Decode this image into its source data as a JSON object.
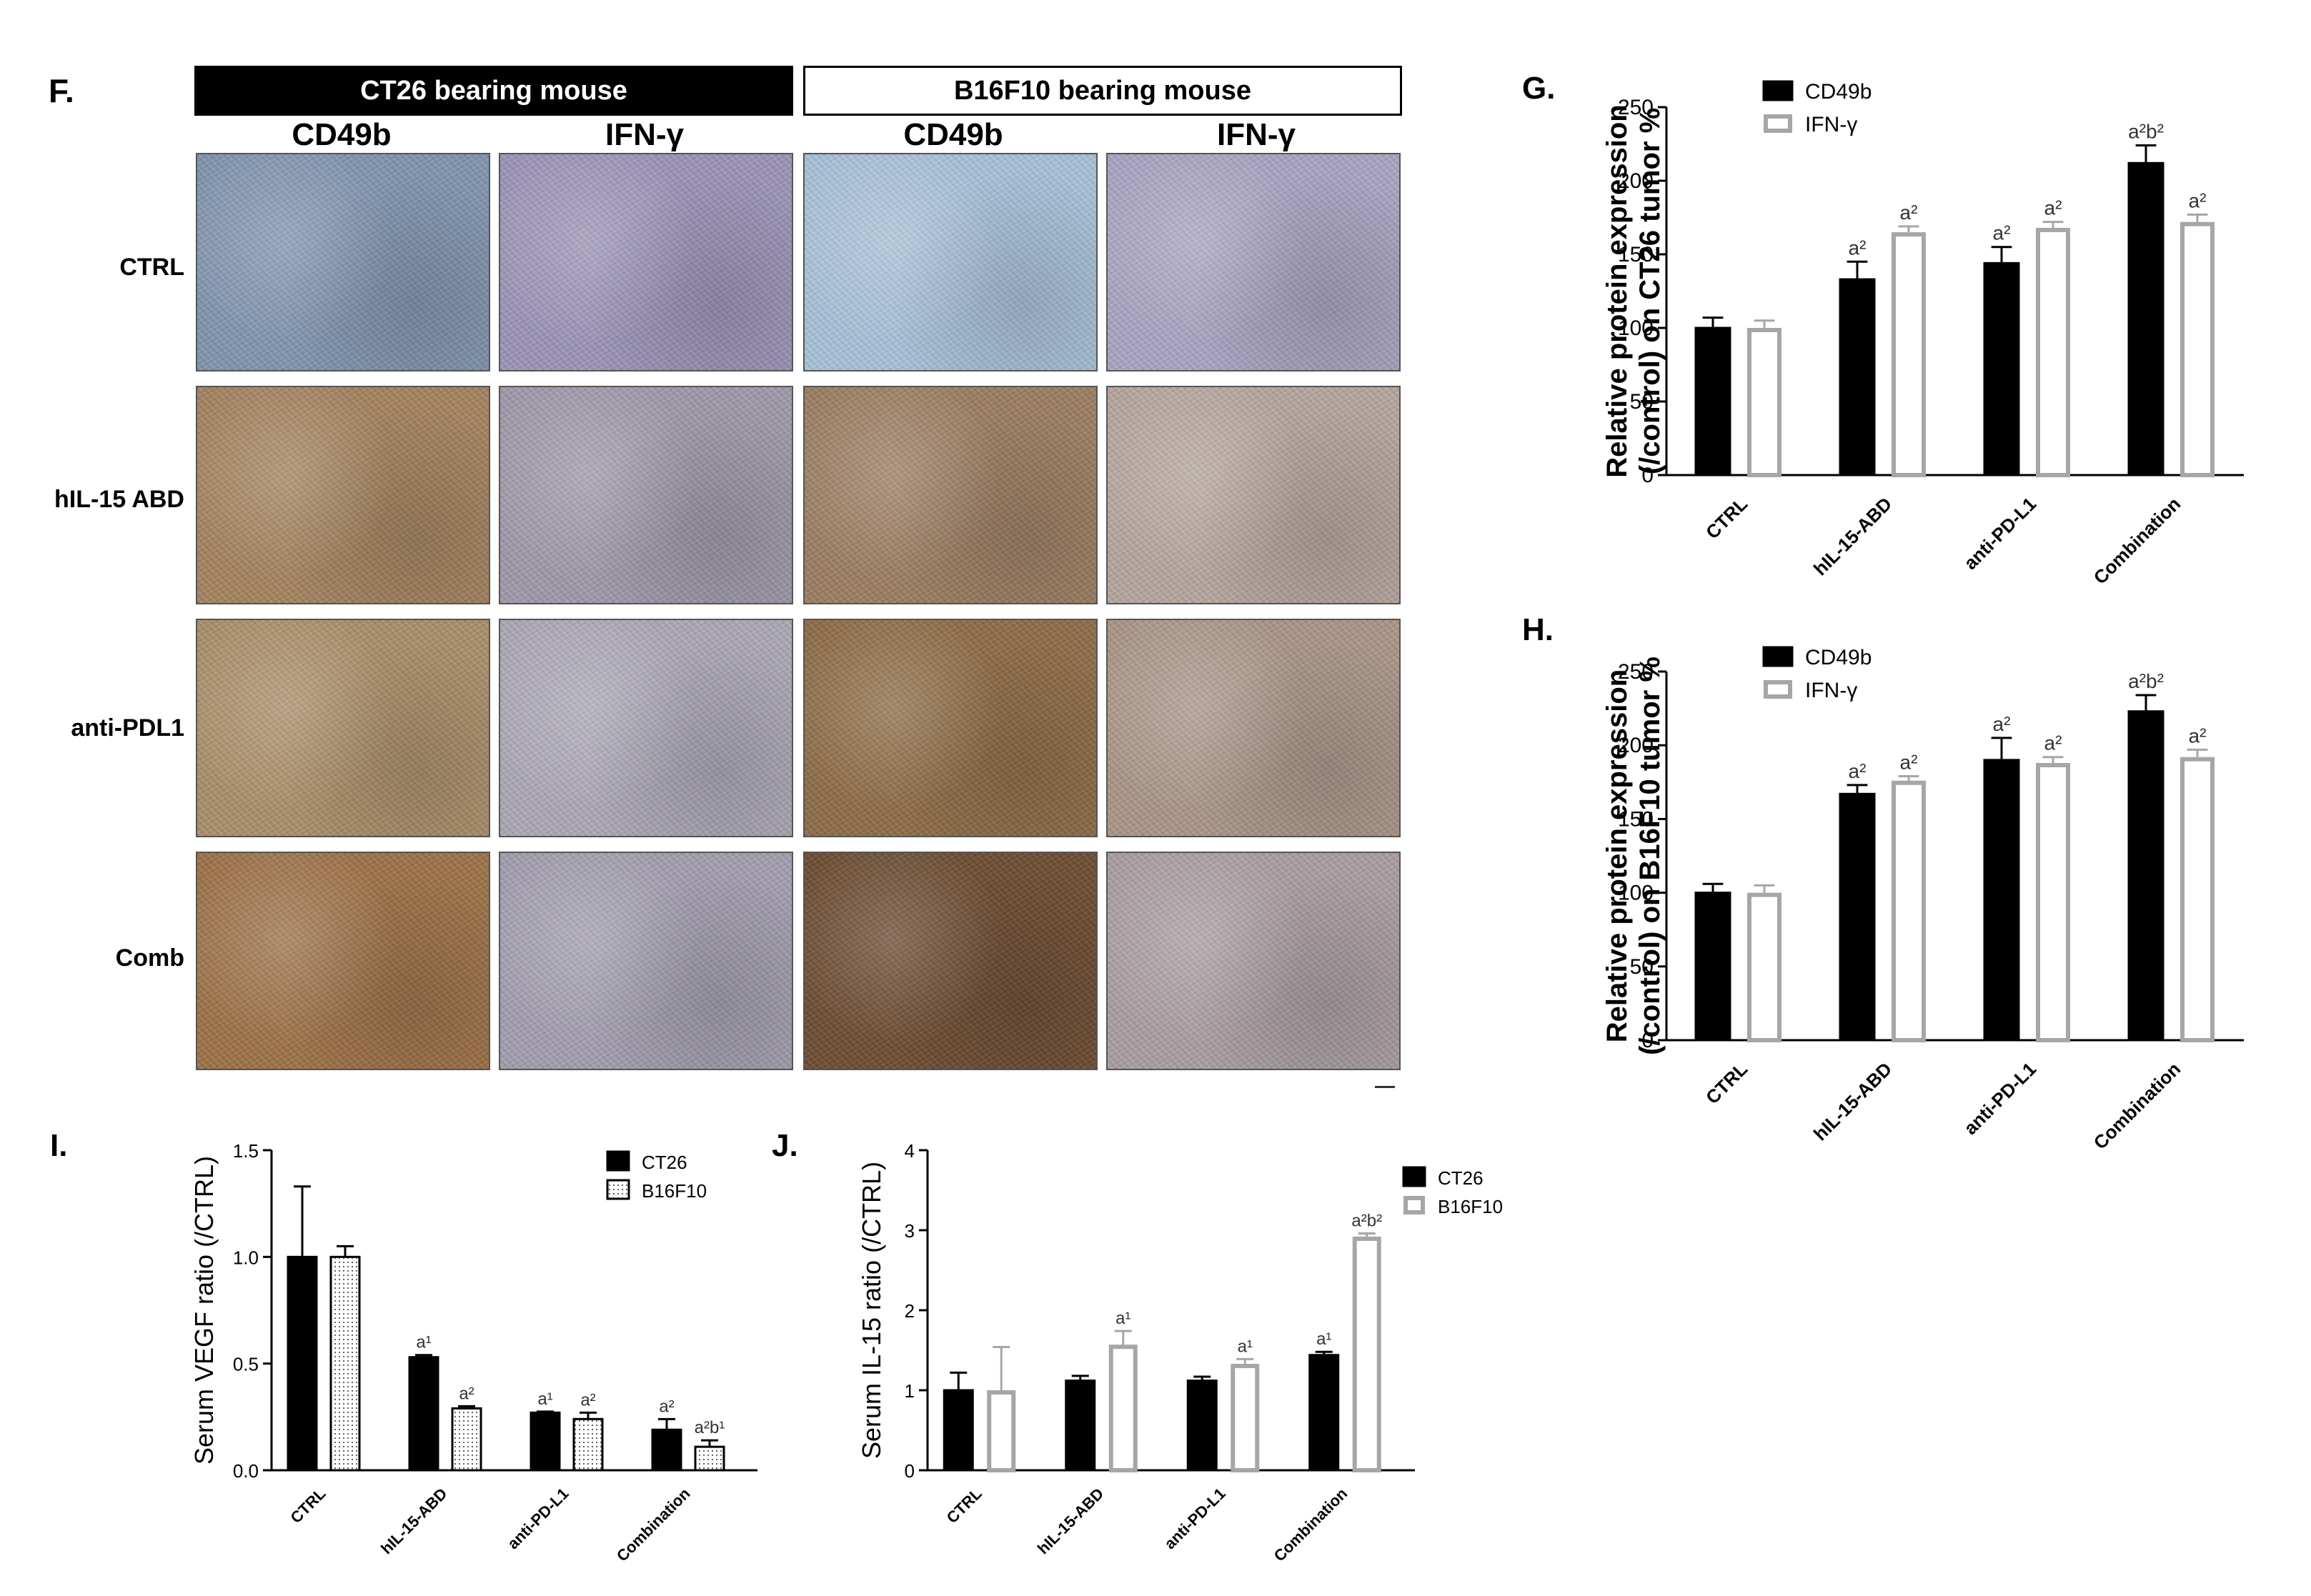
{
  "panel_f": {
    "letter": "F.",
    "groups": [
      {
        "label": "CT26 bearing mouse",
        "style": "filled"
      },
      {
        "label": "B16F10 bearing mouse",
        "style": "outlined"
      }
    ],
    "columns": [
      "CD49b",
      "IFN-γ",
      "CD49b",
      "IFN-γ"
    ],
    "rows": [
      "CTRL",
      "hIL-15 ABD",
      "anti-PDL1",
      "Comb"
    ],
    "tile_colors": [
      [
        "#7f93ad",
        "#9a92b5",
        "#a6bfd6",
        "#a8a2c0"
      ],
      [
        "#a2815d",
        "#9d97a8",
        "#9a7c60",
        "#b4a49c"
      ],
      [
        "#a98c68",
        "#aaa6b3",
        "#8c6a45",
        "#a99486"
      ],
      [
        "#9b7045",
        "#a19cad",
        "#6b4a30",
        "#a89c9f"
      ]
    ]
  },
  "chart_data": [
    {
      "id": "G",
      "letter": "G.",
      "type": "bar",
      "categories": [
        "CTRL",
        "hIL-15-ABD",
        "anti-PD-L1",
        "Combination"
      ],
      "ylabel_lines": [
        "Relative protein expression",
        "(/control) on CT26 tumor %"
      ],
      "ylim": [
        0,
        250
      ],
      "yticks": [
        0,
        50,
        100,
        150,
        200,
        250
      ],
      "legend": {
        "placement": "top-left",
        "entries": [
          "CD49b",
          "IFN-γ"
        ]
      },
      "series": [
        {
          "name": "CD49b",
          "color": "#000000",
          "fill": "solid",
          "values": [
            100,
            133,
            144,
            212
          ],
          "errors": [
            7,
            12,
            11,
            12
          ],
          "annotations": [
            "",
            "a²",
            "a²",
            "a²b²"
          ]
        },
        {
          "name": "IFN-γ",
          "color": "#a6a6a6",
          "fill": "open",
          "values": [
            100,
            165,
            168,
            172
          ],
          "errors": [
            5,
            4,
            4,
            5
          ],
          "annotations": [
            "",
            "a²",
            "a²",
            "a²"
          ]
        }
      ]
    },
    {
      "id": "H",
      "letter": "H.",
      "type": "bar",
      "categories": [
        "CTRL",
        "hIL-15-ABD",
        "anti-PD-L1",
        "Combination"
      ],
      "ylabel_lines": [
        "Relative protein expression",
        "(/control) on B16F10 tumor %"
      ],
      "ylim": [
        0,
        250
      ],
      "yticks": [
        0,
        50,
        100,
        150,
        200,
        250
      ],
      "legend": {
        "placement": "top-left",
        "entries": [
          "CD49b",
          "IFN-γ"
        ]
      },
      "series": [
        {
          "name": "CD49b",
          "color": "#000000",
          "fill": "solid",
          "values": [
            100,
            167,
            190,
            223
          ],
          "errors": [
            6,
            6,
            15,
            11
          ],
          "annotations": [
            "",
            "a²",
            "a²",
            "a²b²"
          ]
        },
        {
          "name": "IFN-γ",
          "color": "#a6a6a6",
          "fill": "open",
          "values": [
            100,
            176,
            188,
            192
          ],
          "errors": [
            5,
            3,
            4,
            5
          ],
          "annotations": [
            "",
            "a²",
            "a²",
            "a²"
          ]
        }
      ]
    },
    {
      "id": "I",
      "letter": "I.",
      "type": "bar",
      "categories": [
        "CTRL",
        "hIL-15-ABD",
        "anti-PD-L1",
        "Combination"
      ],
      "ylabel_lines": [
        "Serum VEGF ratio (/CTRL)"
      ],
      "ylim": [
        0,
        1.5
      ],
      "yticks": [
        0.0,
        0.5,
        1.0,
        1.5
      ],
      "tick_format": "fixed1",
      "legend": {
        "placement": "top-right",
        "entries": [
          "CT26",
          "B16F10"
        ]
      },
      "series": [
        {
          "name": "CT26",
          "color": "#000000",
          "fill": "solid",
          "values": [
            1.0,
            0.53,
            0.27,
            0.19
          ],
          "errors": [
            0.33,
            0.01,
            0.005,
            0.05
          ],
          "annotations": [
            "",
            "a¹",
            "a¹",
            "a²"
          ]
        },
        {
          "name": "B16F10",
          "color": "#000000",
          "fill": "dotted",
          "values": [
            1.0,
            0.29,
            0.24,
            0.11
          ],
          "errors": [
            0.05,
            0.01,
            0.03,
            0.03
          ],
          "annotations": [
            "",
            "a²",
            "a²",
            "a²b¹"
          ]
        }
      ]
    },
    {
      "id": "J",
      "letter": "J.",
      "type": "bar",
      "categories": [
        "CTRL",
        "hIL-15-ABD",
        "anti-PD-L1",
        "Combination"
      ],
      "ylabel_lines": [
        "Serum IL-15 ratio (/CTRL)"
      ],
      "ylim": [
        0,
        4
      ],
      "yticks": [
        0,
        1,
        2,
        3,
        4
      ],
      "legend": {
        "placement": "top-right",
        "entries": [
          "CT26",
          "B16F10"
        ]
      },
      "series": [
        {
          "name": "CT26",
          "color": "#000000",
          "fill": "solid",
          "values": [
            1.0,
            1.12,
            1.12,
            1.44
          ],
          "errors": [
            0.22,
            0.06,
            0.05,
            0.04
          ],
          "annotations": [
            "",
            "",
            "",
            "a¹"
          ]
        },
        {
          "name": "B16F10",
          "color": "#a6a6a6",
          "fill": "open",
          "values": [
            1.0,
            1.57,
            1.33,
            2.92
          ],
          "errors": [
            0.54,
            0.17,
            0.06,
            0.04
          ],
          "annotations": [
            "",
            "a¹",
            "a¹",
            "a²b²"
          ]
        }
      ]
    }
  ]
}
